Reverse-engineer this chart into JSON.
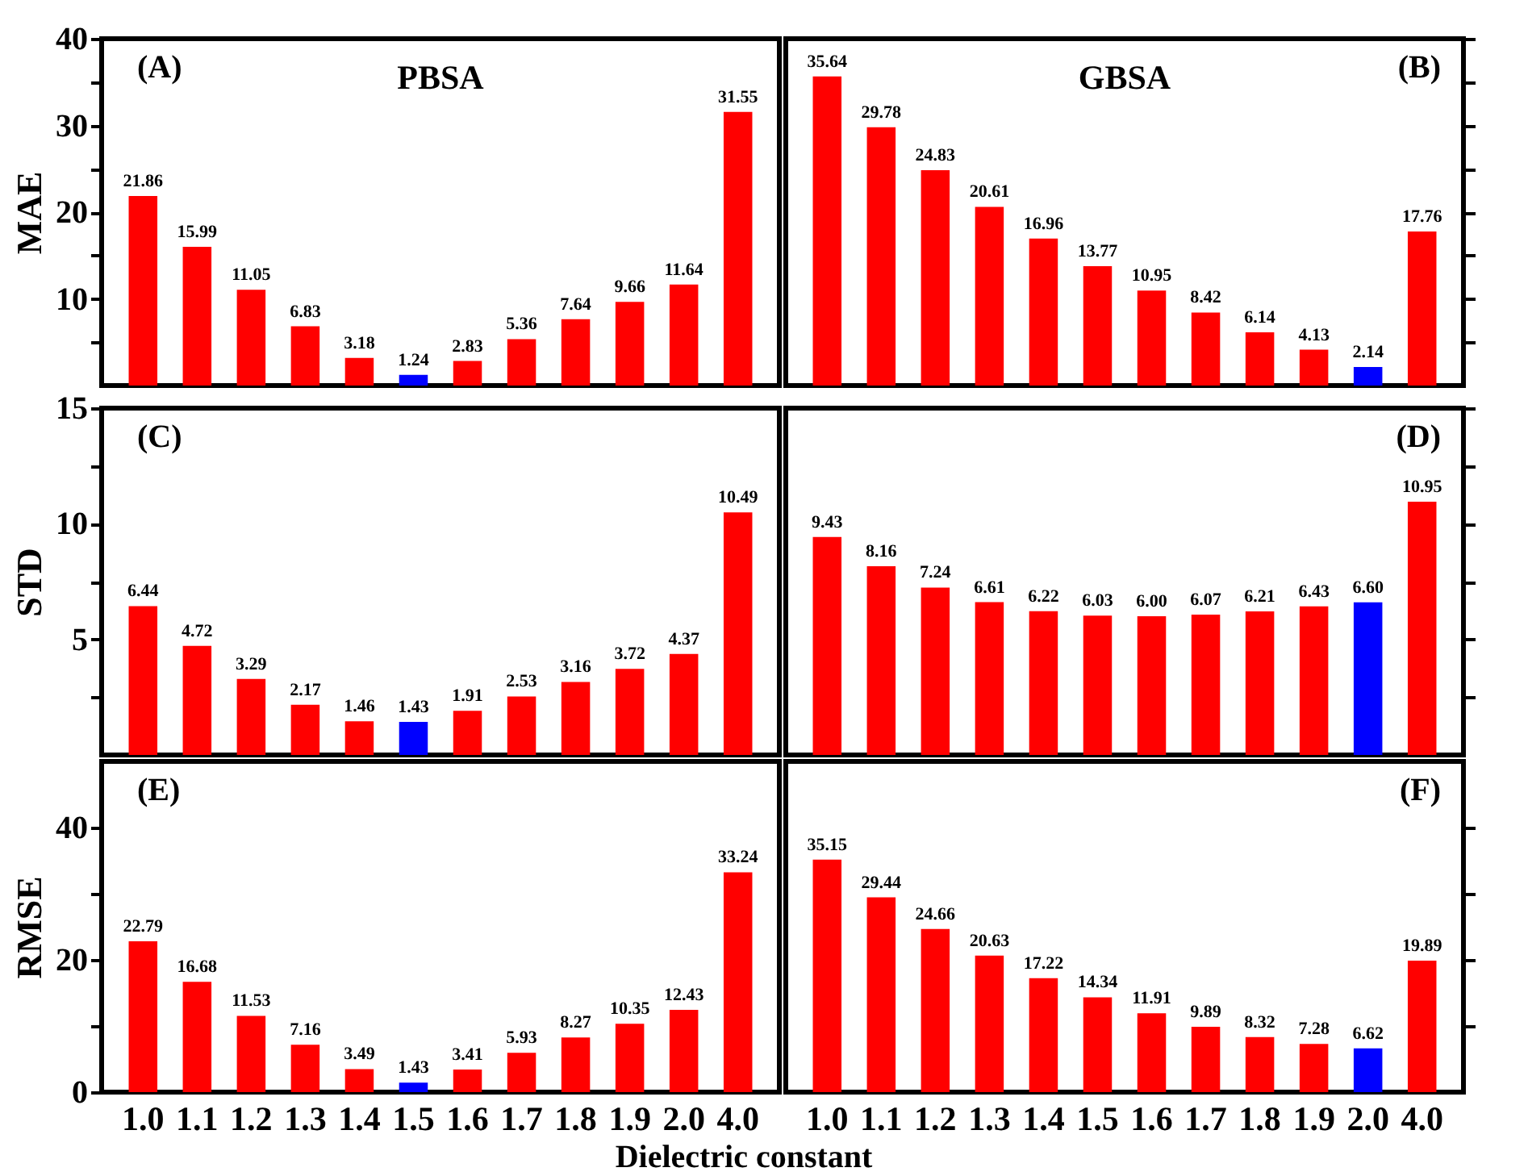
{
  "chart_data": [
    {
      "type": "bar",
      "title": "PBSA",
      "ylabel": "MAE",
      "annotations": [
        "(A)"
      ],
      "categories": [
        "1.0",
        "1.1",
        "1.2",
        "1.3",
        "1.4",
        "1.5",
        "1.6",
        "1.7",
        "1.8",
        "1.9",
        "2.0",
        "4.0"
      ],
      "values": [
        21.86,
        15.99,
        11.05,
        6.83,
        3.18,
        1.24,
        2.83,
        5.36,
        7.64,
        9.66,
        11.64,
        31.55
      ],
      "value_labels": [
        "21.86",
        "15.99",
        "11.05",
        "6.83",
        "3.18",
        "1.24",
        "2.83",
        "5.36",
        "7.64",
        "9.66",
        "11.64",
        "31.55"
      ],
      "colors": [
        "#ff0000",
        "#ff0000",
        "#ff0000",
        "#ff0000",
        "#ff0000",
        "#0000ff",
        "#ff0000",
        "#ff0000",
        "#ff0000",
        "#ff0000",
        "#ff0000",
        "#ff0000"
      ],
      "ylim": [
        0,
        40
      ],
      "yticks": [
        {
          "value": 5,
          "label": null
        },
        10,
        {
          "value": 15,
          "label": null
        },
        20,
        {
          "value": 25,
          "label": null
        },
        30,
        {
          "value": 35,
          "label": null
        },
        40
      ],
      "tick_labels": "y",
      "grid": false
    },
    {
      "type": "bar",
      "title": "GBSA",
      "annotations": [
        "(B)"
      ],
      "categories": [
        "1.0",
        "1.1",
        "1.2",
        "1.3",
        "1.4",
        "1.5",
        "1.6",
        "1.7",
        "1.8",
        "1.9",
        "2.0",
        "4.0"
      ],
      "values": [
        35.64,
        29.78,
        24.83,
        20.61,
        16.96,
        13.77,
        10.95,
        8.42,
        6.14,
        4.13,
        2.14,
        17.76
      ],
      "value_labels": [
        "35.64",
        "29.78",
        "24.83",
        "20.61",
        "16.96",
        "13.77",
        "10.95",
        "8.42",
        "6.14",
        "4.13",
        "2.14",
        "17.76"
      ],
      "colors": [
        "#ff0000",
        "#ff0000",
        "#ff0000",
        "#ff0000",
        "#ff0000",
        "#ff0000",
        "#ff0000",
        "#ff0000",
        "#ff0000",
        "#ff0000",
        "#0000ff",
        "#ff0000"
      ],
      "ylim": [
        0,
        40
      ],
      "yticks": [
        5,
        10,
        15,
        20,
        25,
        30,
        35,
        40
      ],
      "tick_labels": false,
      "grid": false
    },
    {
      "type": "bar",
      "ylabel": "STD",
      "annotations": [
        "(C)"
      ],
      "categories": [
        "1.0",
        "1.1",
        "1.2",
        "1.3",
        "1.4",
        "1.5",
        "1.6",
        "1.7",
        "1.8",
        "1.9",
        "2.0",
        "4.0"
      ],
      "values": [
        6.44,
        4.72,
        3.29,
        2.17,
        1.46,
        1.43,
        1.91,
        2.53,
        3.16,
        3.72,
        4.37,
        10.49
      ],
      "value_labels": [
        "6.44",
        "4.72",
        "3.29",
        "2.17",
        "1.46",
        "1.43",
        "1.91",
        "2.53",
        "3.16",
        "3.72",
        "4.37",
        "10.49"
      ],
      "colors": [
        "#ff0000",
        "#ff0000",
        "#ff0000",
        "#ff0000",
        "#ff0000",
        "#0000ff",
        "#ff0000",
        "#ff0000",
        "#ff0000",
        "#ff0000",
        "#ff0000",
        "#ff0000"
      ],
      "ylim": [
        0,
        15
      ],
      "yticks": [
        {
          "value": 2.5,
          "label": null
        },
        5,
        {
          "value": 7.5,
          "label": null
        },
        10,
        {
          "value": 12.5,
          "label": null
        },
        15
      ],
      "tick_labels": "y",
      "grid": false
    },
    {
      "type": "bar",
      "annotations": [
        "(D)"
      ],
      "categories": [
        "1.0",
        "1.1",
        "1.2",
        "1.3",
        "1.4",
        "1.5",
        "1.6",
        "1.7",
        "1.8",
        "1.9",
        "2.0",
        "4.0"
      ],
      "values": [
        9.43,
        8.16,
        7.24,
        6.61,
        6.22,
        6.03,
        6.0,
        6.07,
        6.21,
        6.43,
        6.6,
        10.95
      ],
      "value_labels": [
        "9.43",
        "8.16",
        "7.24",
        "6.61",
        "6.22",
        "6.03",
        "6.00",
        "6.07",
        "6.21",
        "6.43",
        "6.60",
        "10.95"
      ],
      "colors": [
        "#ff0000",
        "#ff0000",
        "#ff0000",
        "#ff0000",
        "#ff0000",
        "#ff0000",
        "#ff0000",
        "#ff0000",
        "#ff0000",
        "#ff0000",
        "#0000ff",
        "#ff0000"
      ],
      "ylim": [
        0,
        15
      ],
      "yticks": [
        2.5,
        5,
        7.5,
        10,
        12.5,
        15
      ],
      "tick_labels": false,
      "grid": false
    },
    {
      "type": "bar",
      "ylabel": "RMSE",
      "xlabel": "Dielectric constant",
      "annotations": [
        "(E)"
      ],
      "categories": [
        "1.0",
        "1.1",
        "1.2",
        "1.3",
        "1.4",
        "1.5",
        "1.6",
        "1.7",
        "1.8",
        "1.9",
        "2.0",
        "4.0"
      ],
      "values": [
        22.79,
        16.68,
        11.53,
        7.16,
        3.49,
        1.43,
        3.41,
        5.93,
        8.27,
        10.35,
        12.43,
        33.24
      ],
      "value_labels": [
        "22.79",
        "16.68",
        "11.53",
        "7.16",
        "3.49",
        "1.43",
        "3.41",
        "5.93",
        "8.27",
        "10.35",
        "12.43",
        "33.24"
      ],
      "colors": [
        "#ff0000",
        "#ff0000",
        "#ff0000",
        "#ff0000",
        "#ff0000",
        "#0000ff",
        "#ff0000",
        "#ff0000",
        "#ff0000",
        "#ff0000",
        "#ff0000",
        "#ff0000"
      ],
      "ylim": [
        0,
        50
      ],
      "yticks": [
        0,
        {
          "value": 10,
          "label": null
        },
        20,
        {
          "value": 30,
          "label": null
        },
        40
      ],
      "grid": false
    },
    {
      "type": "bar",
      "annotations": [
        "(F)"
      ],
      "categories": [
        "1.0",
        "1.1",
        "1.2",
        "1.3",
        "1.4",
        "1.5",
        "1.6",
        "1.7",
        "1.8",
        "1.9",
        "2.0",
        "4.0"
      ],
      "values": [
        35.15,
        29.44,
        24.66,
        20.63,
        17.22,
        14.34,
        11.91,
        9.89,
        8.32,
        7.28,
        6.62,
        19.89
      ],
      "value_labels": [
        "35.15",
        "29.44",
        "24.66",
        "20.63",
        "17.22",
        "14.34",
        "11.91",
        "9.89",
        "8.32",
        "7.28",
        "6.62",
        "19.89"
      ],
      "colors": [
        "#ff0000",
        "#ff0000",
        "#ff0000",
        "#ff0000",
        "#ff0000",
        "#ff0000",
        "#ff0000",
        "#ff0000",
        "#ff0000",
        "#ff0000",
        "#0000ff",
        "#ff0000"
      ],
      "ylim": [
        0,
        50
      ],
      "yticks": [
        10,
        20,
        30,
        40
      ],
      "tick_labels": "x",
      "grid": false
    }
  ]
}
